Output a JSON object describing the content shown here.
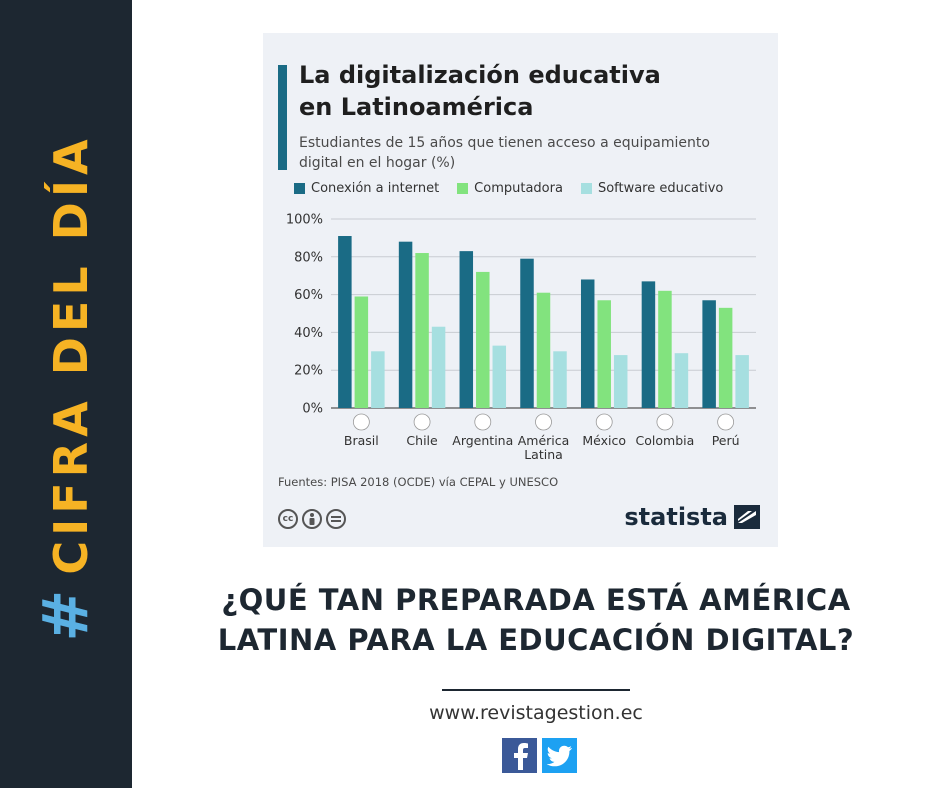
{
  "sidebar": {
    "hash": "#",
    "label": "CIFRA DEL DÍA"
  },
  "card": {
    "title_line1": "La digitalización educativa",
    "title_line2": "en Latinoamérica",
    "subtitle_line1": "Estudiantes de 15 años que tienen acceso a equipamiento",
    "subtitle_line2": "digital en el hogar (%)",
    "source": "Fuentes: PISA 2018 (OCDE) vía CEPAL y UNESCO",
    "brand": "statista"
  },
  "chart_data": {
    "type": "bar",
    "title": "La digitalización educativa en Latinoamérica",
    "subtitle": "Estudiantes de 15 años que tienen acceso a equipamiento digital en el hogar (%)",
    "categories": [
      "Brasil",
      "Chile",
      "Argentina",
      "América Latina",
      "México",
      "Colombia",
      "Perú"
    ],
    "series": [
      {
        "name": "Conexión a internet",
        "color": "#1a6b85",
        "values": [
          91,
          88,
          83,
          79,
          68,
          67,
          57
        ]
      },
      {
        "name": "Computadora",
        "color": "#82e37e",
        "values": [
          59,
          82,
          72,
          61,
          57,
          62,
          53
        ]
      },
      {
        "name": "Software educativo",
        "color": "#a6dfe0",
        "values": [
          30,
          43,
          33,
          30,
          28,
          29,
          28
        ]
      }
    ],
    "y_ticks": [
      "0%",
      "20%",
      "40%",
      "60%",
      "80%",
      "100%"
    ],
    "ylim": [
      0,
      100
    ],
    "grid": true,
    "legend_position": "top-left",
    "source": "Fuentes: PISA 2018 (OCDE) vía CEPAL y UNESCO"
  },
  "headline": {
    "line1": "¿QUÉ TAN PREPARADA ESTÁ AMÉRICA",
    "line2": "LATINA PARA LA EDUCACIÓN DIGITAL?"
  },
  "website": "www.revistagestion.ec",
  "social": {
    "facebook": "facebook-icon",
    "twitter": "twitter-icon"
  }
}
